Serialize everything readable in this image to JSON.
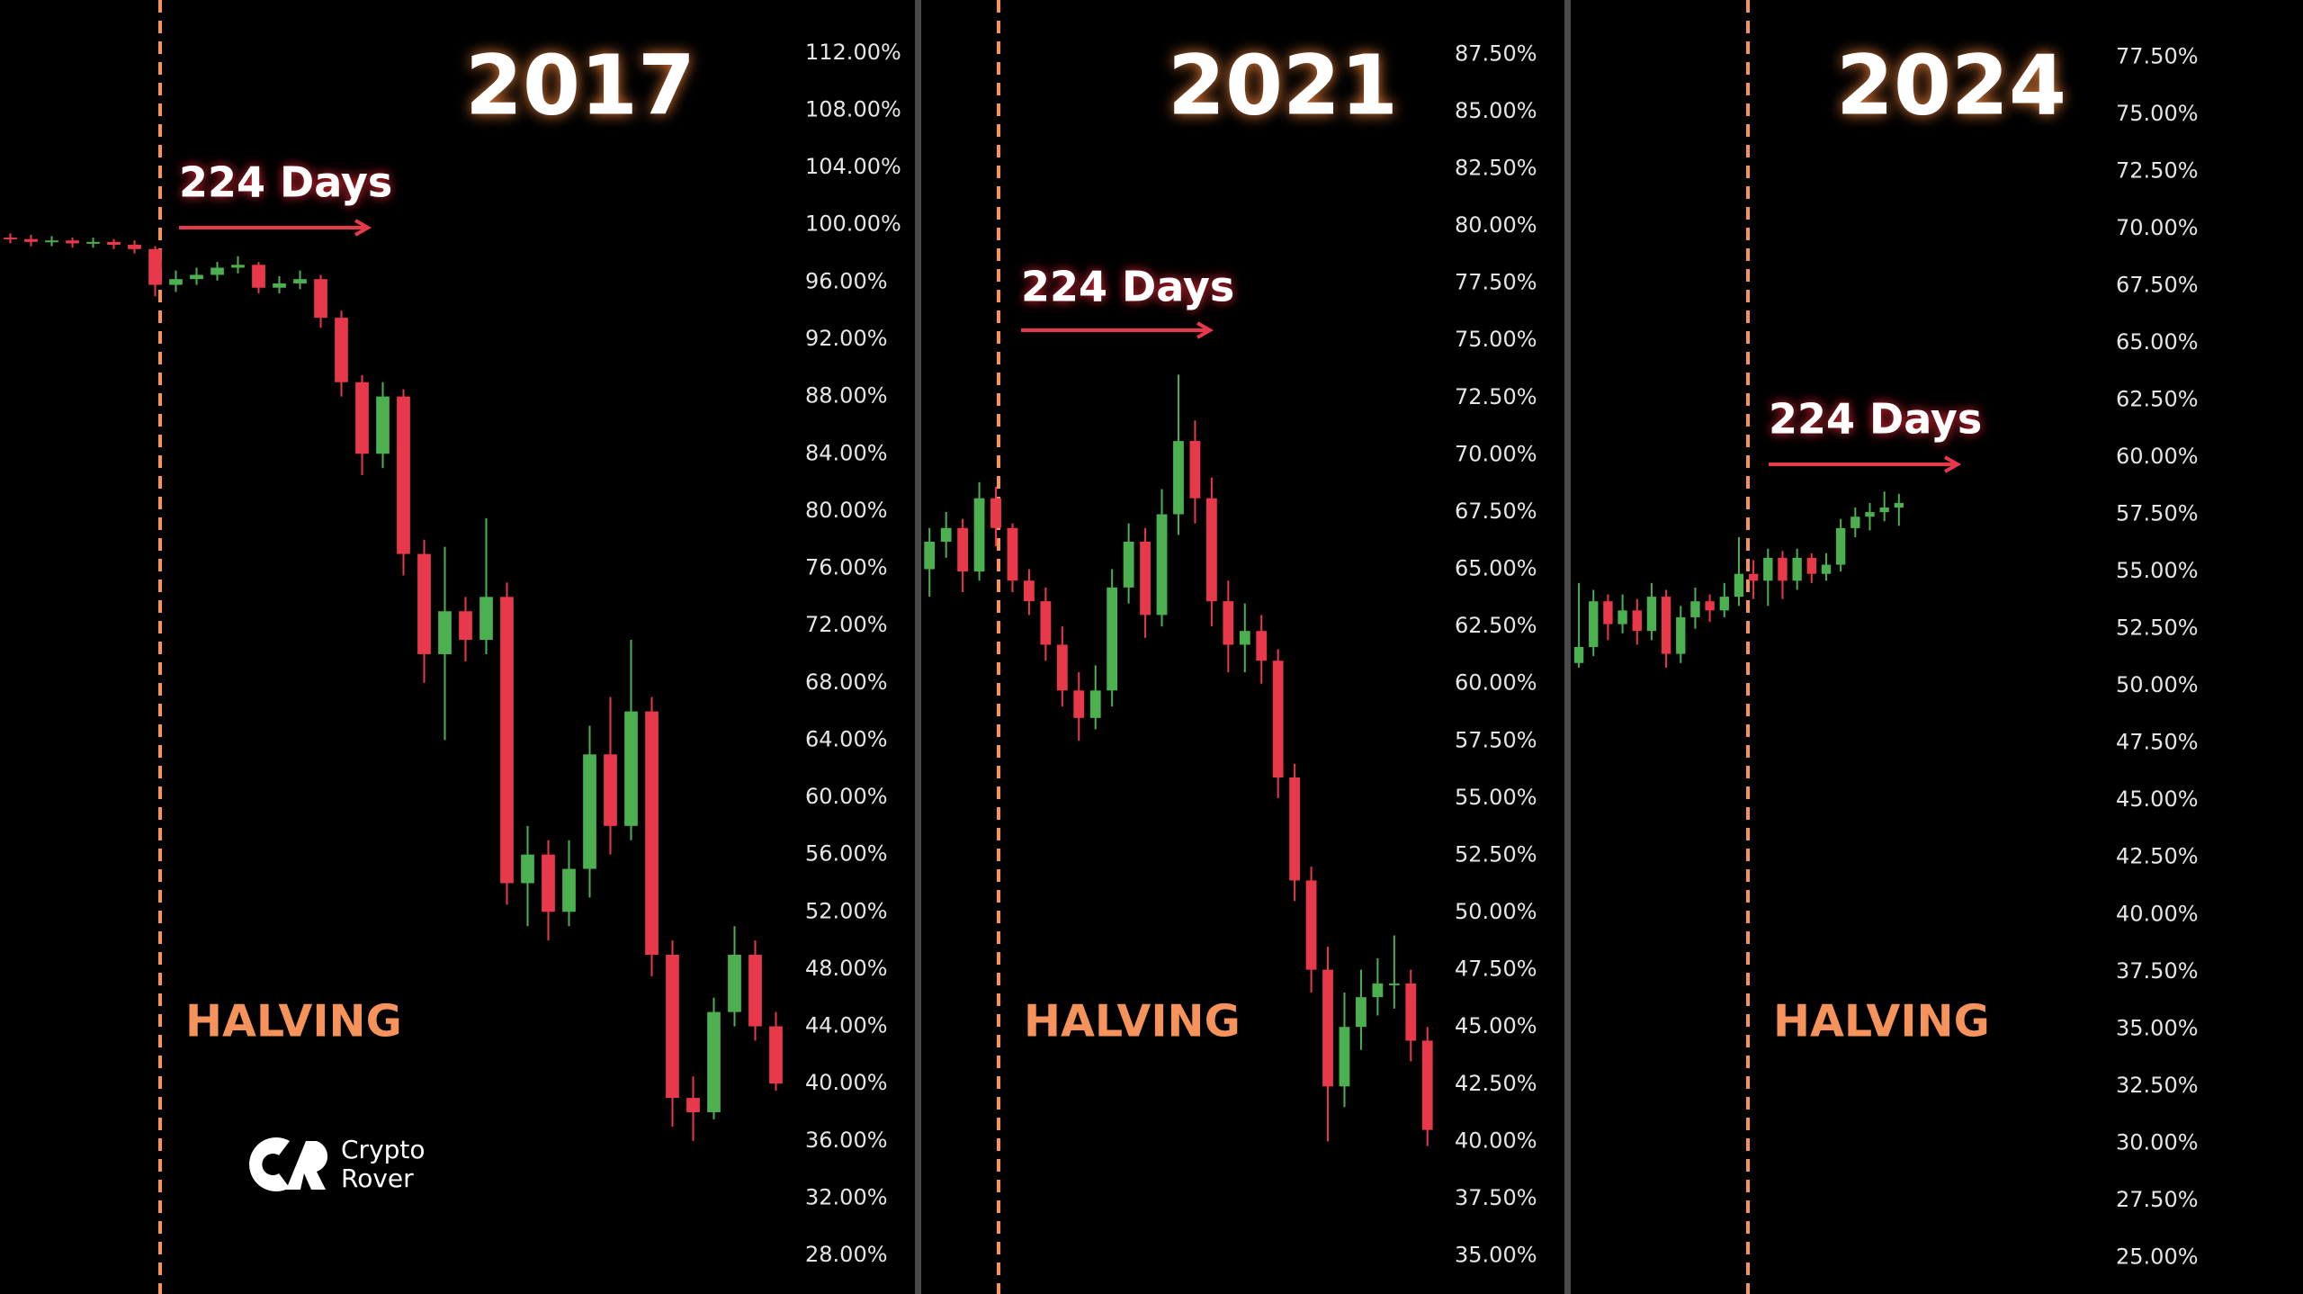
{
  "chart_data": [
    {
      "type": "candlestick",
      "title": "2017",
      "duration_label": "224 Days",
      "event_label": "HALVING",
      "up_color": "#4caf50",
      "down_color": "#e8394a",
      "open": [
        99.1,
        99.0,
        98.8,
        98.9,
        98.7,
        98.8,
        98.6,
        98.3,
        95.8,
        96.2,
        96.5,
        97.0,
        97.2,
        95.6,
        95.9,
        96.2,
        93.5,
        89.0,
        84.0,
        88.0,
        77.0,
        70.0,
        73.0,
        71.0,
        74.0,
        54.0,
        56.0,
        52.0,
        55.0,
        63.0,
        58.0,
        66.0,
        49.0,
        39.0,
        38.0,
        45.0,
        49.0,
        44.0
      ],
      "high": [
        99.4,
        99.3,
        99.2,
        99.1,
        99.1,
        99.0,
        98.9,
        98.5,
        96.8,
        97.0,
        97.4,
        97.8,
        97.4,
        96.4,
        96.8,
        96.5,
        94.0,
        89.5,
        89.0,
        88.5,
        78.0,
        77.5,
        74.0,
        79.5,
        75.0,
        58.0,
        57.0,
        57.0,
        65.0,
        67.0,
        71.0,
        67.0,
        50.0,
        40.5,
        46.0,
        51.0,
        50.0,
        45.0
      ],
      "low": [
        98.7,
        98.5,
        98.5,
        98.4,
        98.4,
        98.3,
        98.0,
        95.0,
        95.3,
        95.8,
        96.1,
        96.6,
        95.2,
        95.2,
        95.5,
        92.8,
        88.0,
        82.5,
        83.0,
        75.5,
        68.0,
        64.0,
        69.5,
        70.0,
        52.5,
        51.0,
        50.0,
        51.0,
        53.0,
        56.0,
        57.0,
        47.5,
        37.0,
        36.0,
        37.5,
        44.0,
        43.0,
        39.5
      ],
      "close": [
        99.0,
        98.8,
        98.9,
        98.7,
        98.8,
        98.6,
        98.3,
        95.8,
        96.2,
        96.5,
        97.0,
        97.2,
        95.6,
        95.9,
        96.2,
        93.5,
        89.0,
        84.0,
        88.0,
        77.0,
        70.0,
        73.0,
        71.0,
        74.0,
        54.0,
        56.0,
        52.0,
        55.0,
        63.0,
        58.0,
        66.0,
        49.0,
        39.0,
        38.0,
        45.0,
        49.0,
        44.0,
        40.0
      ],
      "ylim": [
        25.3,
        115.7
      ],
      "yticks": [
        {
          "value": 112,
          "label": "112.00%"
        },
        {
          "value": 108,
          "label": "108.00%"
        },
        {
          "value": 104,
          "label": "104.00%"
        },
        {
          "value": 100,
          "label": "100.00%"
        },
        {
          "value": 96,
          "label": "96.00%"
        },
        {
          "value": 92,
          "label": "92.00%"
        },
        {
          "value": 88,
          "label": "88.00%"
        },
        {
          "value": 84,
          "label": "84.00%"
        },
        {
          "value": 80,
          "label": "80.00%"
        },
        {
          "value": 76,
          "label": "76.00%"
        },
        {
          "value": 72,
          "label": "72.00%"
        },
        {
          "value": 68,
          "label": "68.00%"
        },
        {
          "value": 64,
          "label": "64.00%"
        },
        {
          "value": 60,
          "label": "60.00%"
        },
        {
          "value": 56,
          "label": "56.00%"
        },
        {
          "value": 52,
          "label": "52.00%"
        },
        {
          "value": 48,
          "label": "48.00%"
        },
        {
          "value": 44,
          "label": "44.00%"
        },
        {
          "value": 40,
          "label": "40.00%"
        },
        {
          "value": 36,
          "label": "36.00%"
        },
        {
          "value": 32,
          "label": "32.00%"
        },
        {
          "value": 28,
          "label": "28.00%"
        }
      ]
    },
    {
      "type": "candlestick",
      "title": "2021",
      "duration_label": "224 Days",
      "event_label": "HALVING",
      "up_color": "#4caf50",
      "down_color": "#e8394a",
      "open": [
        65.0,
        66.2,
        66.8,
        64.9,
        68.1,
        66.8,
        64.5,
        63.6,
        61.7,
        59.7,
        58.5,
        59.7,
        64.2,
        66.2,
        63.0,
        67.4,
        70.6,
        68.1,
        63.6,
        61.7,
        62.3,
        61.0,
        55.9,
        51.4,
        47.5,
        42.4,
        45.0,
        46.3,
        46.9,
        46.9,
        44.4
      ],
      "high": [
        66.8,
        67.5,
        67.2,
        68.8,
        68.6,
        67.0,
        65.0,
        64.2,
        62.5,
        60.5,
        60.8,
        65.0,
        67.0,
        66.8,
        68.5,
        73.5,
        71.5,
        69.0,
        64.5,
        63.5,
        63.0,
        61.5,
        56.5,
        52.0,
        48.5,
        46.5,
        47.5,
        48.0,
        49.0,
        47.5,
        45.0
      ],
      "low": [
        63.8,
        65.5,
        64.0,
        64.5,
        66.0,
        64.0,
        63.0,
        61.0,
        59.0,
        57.5,
        58.0,
        59.0,
        63.5,
        62.0,
        62.5,
        66.5,
        67.0,
        62.5,
        60.5,
        60.5,
        60.0,
        55.0,
        50.5,
        46.5,
        40.0,
        41.5,
        44.0,
        45.5,
        45.8,
        43.5,
        39.8
      ],
      "close": [
        66.2,
        66.8,
        64.9,
        68.1,
        66.8,
        64.5,
        63.6,
        61.7,
        59.7,
        58.5,
        59.7,
        64.2,
        66.2,
        63.0,
        67.4,
        70.6,
        68.1,
        63.6,
        61.7,
        62.3,
        61.0,
        55.9,
        51.4,
        47.5,
        42.4,
        45.0,
        46.3,
        46.9,
        46.9,
        44.4,
        40.5
      ],
      "ylim": [
        33.33,
        89.87
      ],
      "yticks": [
        {
          "value": 87.5,
          "label": "87.50%"
        },
        {
          "value": 85,
          "label": "85.00%"
        },
        {
          "value": 82.5,
          "label": "82.50%"
        },
        {
          "value": 80,
          "label": "80.00%"
        },
        {
          "value": 77.5,
          "label": "77.50%"
        },
        {
          "value": 75,
          "label": "75.00%"
        },
        {
          "value": 72.5,
          "label": "72.50%"
        },
        {
          "value": 70,
          "label": "70.00%"
        },
        {
          "value": 67.5,
          "label": "67.50%"
        },
        {
          "value": 65,
          "label": "65.00%"
        },
        {
          "value": 62.5,
          "label": "62.50%"
        },
        {
          "value": 60,
          "label": "60.00%"
        },
        {
          "value": 57.5,
          "label": "57.50%"
        },
        {
          "value": 55,
          "label": "55.00%"
        },
        {
          "value": 52.5,
          "label": "52.50%"
        },
        {
          "value": 50,
          "label": "50.00%"
        },
        {
          "value": 47.5,
          "label": "47.50%"
        },
        {
          "value": 45,
          "label": "45.00%"
        },
        {
          "value": 42.5,
          "label": "42.50%"
        },
        {
          "value": 40,
          "label": "40.00%"
        },
        {
          "value": 37.5,
          "label": "37.50%"
        },
        {
          "value": 35,
          "label": "35.00%"
        }
      ]
    },
    {
      "type": "candlestick",
      "title": "2024",
      "duration_label": "224 Days",
      "event_label": "HALVING",
      "up_color": "#4caf50",
      "down_color": "#e8394a",
      "open": [
        51.0,
        51.7,
        53.7,
        52.7,
        53.3,
        52.4,
        53.9,
        51.4,
        53.0,
        53.7,
        53.3,
        53.9,
        54.9,
        54.6,
        55.6,
        54.6,
        55.6,
        54.9,
        55.3,
        56.9,
        57.4,
        57.6,
        57.8
      ],
      "high": [
        54.5,
        54.2,
        54.0,
        54.0,
        53.8,
        54.5,
        54.2,
        53.5,
        54.3,
        54.0,
        54.5,
        56.5,
        55.5,
        56.0,
        55.9,
        56.0,
        55.8,
        55.8,
        57.3,
        57.8,
        58.0,
        58.5,
        58.4
      ],
      "low": [
        50.8,
        51.3,
        52.0,
        52.3,
        51.8,
        52.0,
        50.8,
        51.0,
        52.5,
        52.8,
        53.0,
        53.5,
        53.8,
        53.5,
        53.8,
        54.2,
        54.5,
        54.6,
        55.0,
        56.5,
        56.8,
        57.2,
        57.0
      ],
      "close": [
        51.7,
        53.7,
        52.7,
        53.3,
        52.4,
        53.9,
        51.4,
        53.0,
        53.7,
        53.3,
        53.9,
        54.9,
        54.6,
        55.6,
        54.6,
        55.6,
        54.9,
        55.3,
        56.9,
        57.4,
        57.6,
        57.8,
        58.0
      ],
      "ylim": [
        23.4,
        80.0
      ],
      "yticks": [
        {
          "value": 77.5,
          "label": "77.50%"
        },
        {
          "value": 75,
          "label": "75.00%"
        },
        {
          "value": 72.5,
          "label": "72.50%"
        },
        {
          "value": 70,
          "label": "70.00%"
        },
        {
          "value": 67.5,
          "label": "67.50%"
        },
        {
          "value": 65,
          "label": "65.00%"
        },
        {
          "value": 62.5,
          "label": "62.50%"
        },
        {
          "value": 60,
          "label": "60.00%"
        },
        {
          "value": 57.5,
          "label": "57.50%"
        },
        {
          "value": 55,
          "label": "55.00%"
        },
        {
          "value": 52.5,
          "label": "52.50%"
        },
        {
          "value": 50,
          "label": "50.00%"
        },
        {
          "value": 47.5,
          "label": "47.50%"
        },
        {
          "value": 45,
          "label": "45.00%"
        },
        {
          "value": 42.5,
          "label": "42.50%"
        },
        {
          "value": 40,
          "label": "40.00%"
        },
        {
          "value": 37.5,
          "label": "37.50%"
        },
        {
          "value": 35,
          "label": "35.00%"
        },
        {
          "value": 32.5,
          "label": "32.50%"
        },
        {
          "value": 30,
          "label": "30.00%"
        },
        {
          "value": 27.5,
          "label": "27.50%"
        },
        {
          "value": 25,
          "label": "25.00%"
        }
      ]
    }
  ],
  "logo": {
    "line1": "Crypto",
    "line2": "Rover"
  }
}
